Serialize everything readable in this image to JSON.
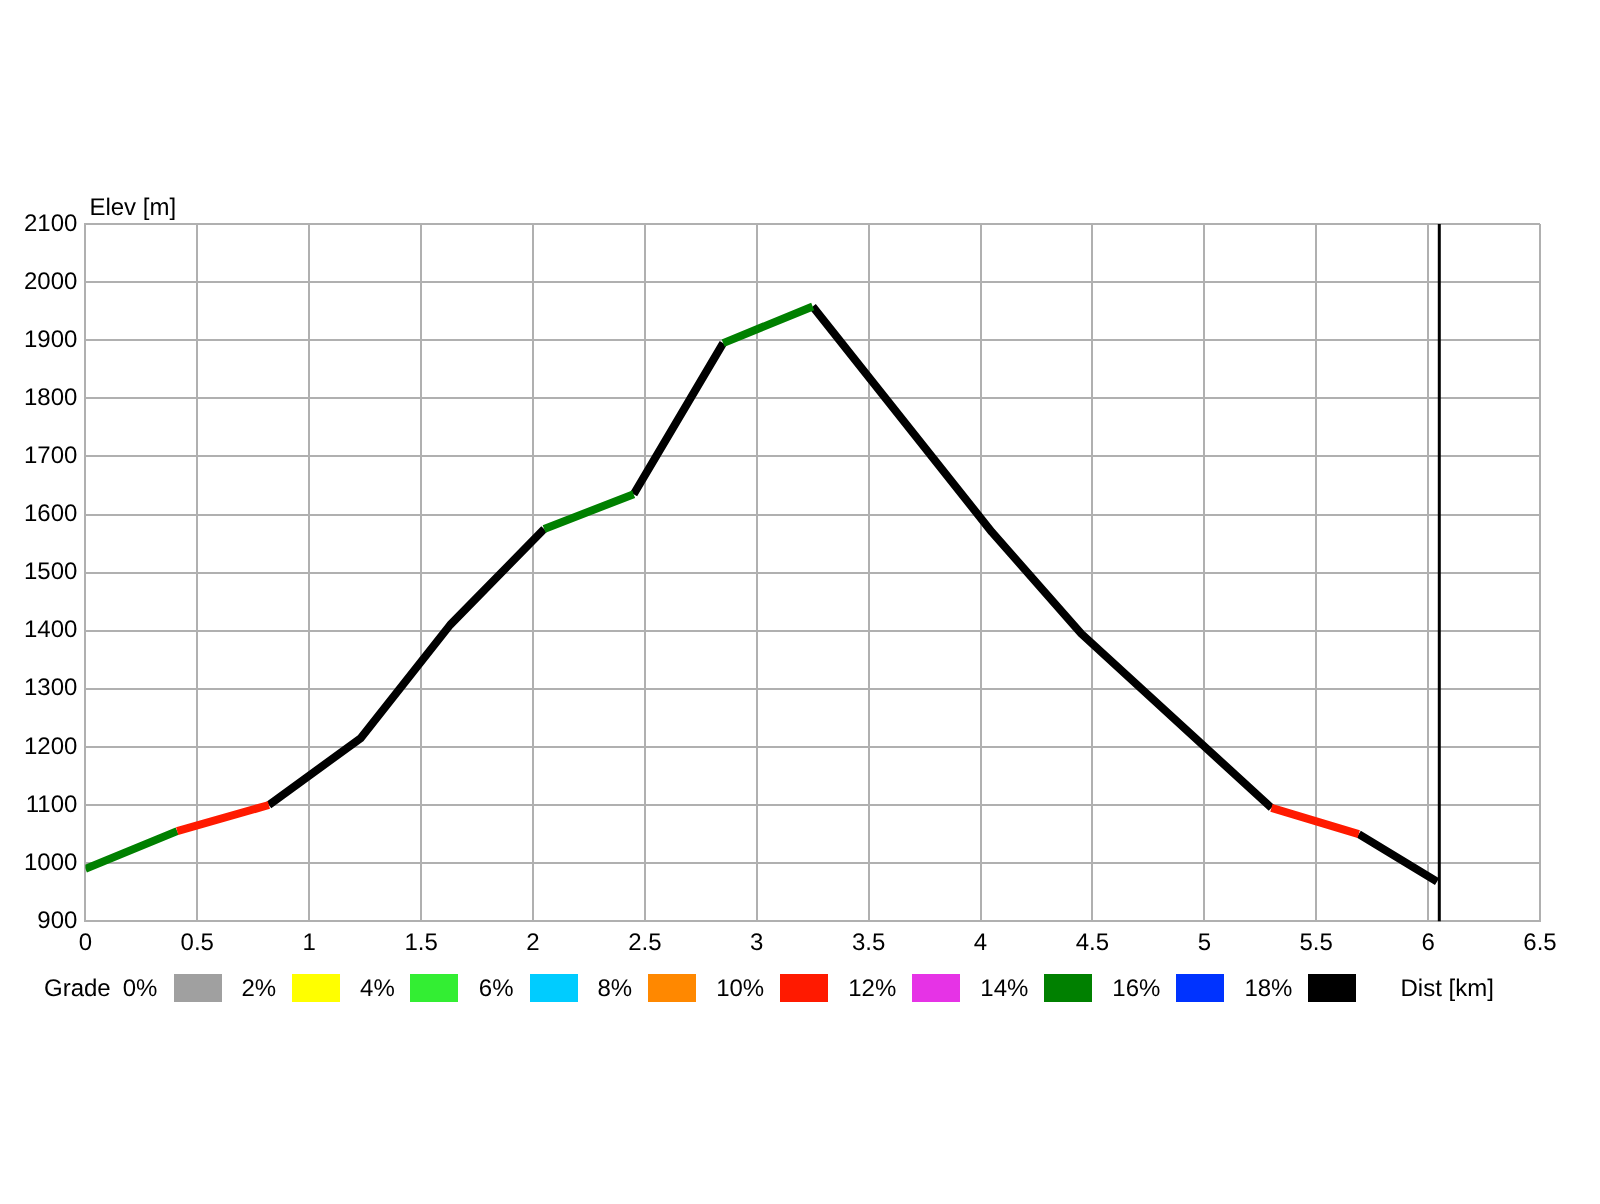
{
  "chart_data": {
    "type": "line",
    "xlabel": "Dist [km]",
    "ylabel": "Elev [m]",
    "legend_title": "Grade",
    "legend": "bottom",
    "grid": true,
    "xlim": [
      0,
      6.5
    ],
    "xticks": [
      0,
      0.5,
      1,
      1.5,
      2,
      2.5,
      3,
      3.5,
      4,
      4.5,
      5,
      5.5,
      6,
      6.5
    ],
    "ylim": [
      900,
      2100
    ],
    "yticks": [
      900,
      1000,
      1100,
      1200,
      1300,
      1400,
      1500,
      1600,
      1700,
      1800,
      1900,
      2000,
      2100
    ],
    "ref_lines": [
      {
        "axis": "x",
        "value": 6.05,
        "color": "#000000"
      }
    ],
    "series": [
      {
        "name": "0%",
        "color": "#a0a0a0"
      },
      {
        "name": "2%",
        "color": "#ffff00"
      },
      {
        "name": "4%",
        "color": "#33ee33"
      },
      {
        "name": "6%",
        "color": "#00ccff"
      },
      {
        "name": "8%",
        "color": "#ff8800"
      },
      {
        "name": "10%",
        "color": "#ff1a00",
        "x": [
          0.41,
          0.82,
          3,
          5.3,
          5.69
        ],
        "values": [
          1055,
          1100,
          null,
          1095,
          1050
        ]
      },
      {
        "name": "12%",
        "color": "#e633e6"
      },
      {
        "name": "14%",
        "color": "#008000",
        "x": [
          0,
          0.41,
          1,
          2.05,
          2.45,
          2.6,
          2.85,
          3.25
        ],
        "values": [
          990,
          1055,
          null,
          1575,
          1635,
          null,
          1895,
          1958
        ]
      },
      {
        "name": "16%",
        "color": "#0033ff"
      },
      {
        "name": "18%",
        "color": "#000000",
        "x": [
          0.82,
          1.23,
          1.63,
          2.05,
          2.2,
          2.45,
          2.85,
          3.0,
          3.25,
          4.05,
          4.45,
          5.3,
          5.5,
          5.69,
          6.04
        ],
        "values": [
          1100,
          1215,
          1410,
          1575,
          null,
          1635,
          1895,
          null,
          1958,
          1570,
          1395,
          1095,
          null,
          1050,
          968
        ]
      }
    ]
  }
}
